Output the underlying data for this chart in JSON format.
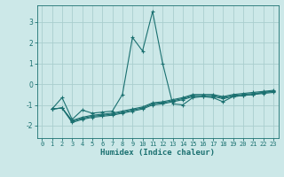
{
  "xlabel": "Humidex (Indice chaleur)",
  "ylabel": "",
  "background_color": "#cce8e8",
  "grid_color": "#aacece",
  "line_color": "#1a7070",
  "xlim": [
    -0.5,
    23.5
  ],
  "ylim": [
    -2.6,
    3.8
  ],
  "yticks": [
    -2,
    -1,
    0,
    1,
    2,
    3
  ],
  "xticks": [
    0,
    1,
    2,
    3,
    4,
    5,
    6,
    7,
    8,
    9,
    10,
    11,
    12,
    13,
    14,
    15,
    16,
    17,
    18,
    19,
    20,
    21,
    22,
    23
  ],
  "lines": [
    {
      "x": [
        1,
        2,
        3,
        4,
        5,
        6,
        7,
        8,
        9,
        10,
        11,
        12,
        13,
        14,
        15,
        16,
        17,
        18,
        19,
        20,
        21,
        22,
        23
      ],
      "y": [
        -1.2,
        -0.65,
        -1.7,
        -1.25,
        -1.4,
        -1.35,
        -1.3,
        -0.5,
        2.25,
        1.6,
        3.5,
        1.0,
        -0.95,
        -1.0,
        -0.65,
        -0.6,
        -0.65,
        -0.85,
        -0.6,
        -0.55,
        -0.5,
        -0.4,
        -0.35
      ]
    },
    {
      "x": [
        1,
        2,
        3,
        4,
        5,
        6,
        7,
        8,
        9,
        10,
        11,
        12,
        13,
        14,
        15,
        16,
        17,
        18,
        19,
        20,
        21,
        22,
        23
      ],
      "y": [
        -1.2,
        -1.15,
        -1.75,
        -1.6,
        -1.5,
        -1.45,
        -1.4,
        -1.3,
        -1.2,
        -1.1,
        -0.9,
        -0.85,
        -0.75,
        -0.65,
        -0.5,
        -0.5,
        -0.5,
        -0.6,
        -0.5,
        -0.45,
        -0.4,
        -0.35,
        -0.3
      ]
    },
    {
      "x": [
        1,
        2,
        3,
        4,
        5,
        6,
        7,
        8,
        9,
        10,
        11,
        12,
        13,
        14,
        15,
        16,
        17,
        18,
        19,
        20,
        21,
        22,
        23
      ],
      "y": [
        -1.2,
        -1.15,
        -1.8,
        -1.65,
        -1.55,
        -1.5,
        -1.45,
        -1.35,
        -1.25,
        -1.15,
        -0.95,
        -0.9,
        -0.8,
        -0.7,
        -0.55,
        -0.55,
        -0.55,
        -0.65,
        -0.55,
        -0.5,
        -0.45,
        -0.4,
        -0.35
      ]
    },
    {
      "x": [
        1,
        2,
        3,
        4,
        5,
        6,
        7,
        8,
        9,
        10,
        11,
        12,
        13,
        14,
        15,
        16,
        17,
        18,
        19,
        20,
        21,
        22,
        23
      ],
      "y": [
        -1.2,
        -1.15,
        -1.85,
        -1.7,
        -1.6,
        -1.55,
        -1.5,
        -1.4,
        -1.3,
        -1.2,
        -1.0,
        -0.95,
        -0.85,
        -0.75,
        -0.6,
        -0.6,
        -0.6,
        -0.7,
        -0.6,
        -0.55,
        -0.5,
        -0.45,
        -0.4
      ]
    }
  ],
  "figsize": [
    3.2,
    2.0
  ],
  "dpi": 100,
  "tick_fontsize": 5.5,
  "xlabel_fontsize": 6.5
}
